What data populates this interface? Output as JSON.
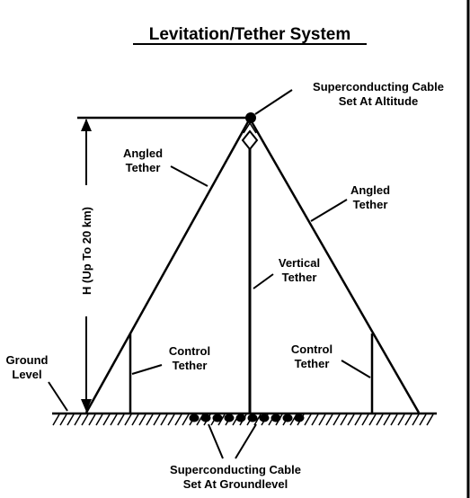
{
  "title": "Levitation/Tether System",
  "labels": {
    "cable_altitude_line1": "Superconducting Cable",
    "cable_altitude_line2": "Set At Altitude",
    "angled_tether_left_line1": "Angled",
    "angled_tether_left_line2": "Tether",
    "angled_tether_right_line1": "Angled",
    "angled_tether_right_line2": "Tether",
    "height_axis": "H (Up To 20 km)",
    "vertical_tether_line1": "Vertical",
    "vertical_tether_line2": "Tether",
    "ground_level_line1": "Ground",
    "ground_level_line2": "Level",
    "control_tether_left_line1": "Control",
    "control_tether_left_line2": "Tether",
    "control_tether_right_line1": "Control",
    "control_tether_right_line2": "Tether",
    "cable_ground_line1": "Superconducting Cable",
    "cable_ground_line2": "Set At Groundlevel"
  },
  "colors": {
    "ink": "#000000",
    "background": "#ffffff"
  }
}
